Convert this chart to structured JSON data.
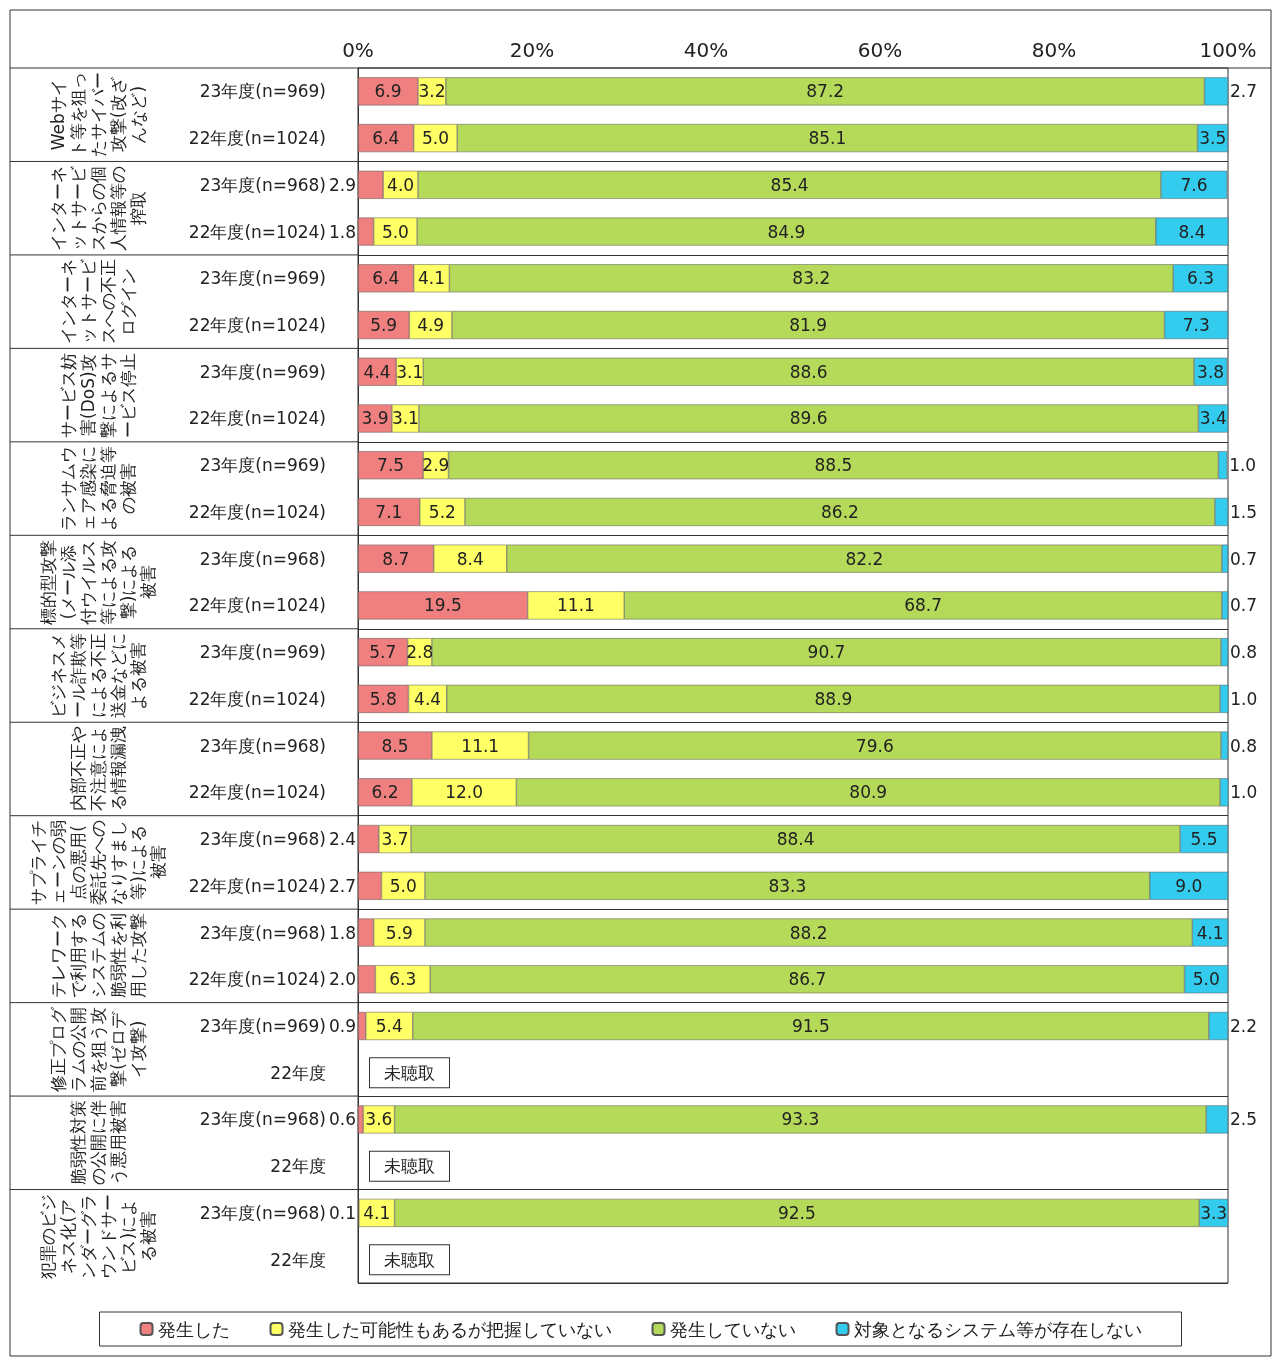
{
  "chart_data": {
    "type": "bar",
    "orientation": "horizontal",
    "stacked": true,
    "legend": "bottom",
    "categories": [
      "23年度(n=969)",
      "22年度(n=1024)",
      "23年度(n=968)",
      "22年度(n=1024)",
      "23年度(n=969)",
      "22年度(n=1024)",
      "23年度(n=969)",
      "22年度(n=1024)",
      "23年度(n=969)",
      "22年度(n=1024)",
      "23年度(n=968)",
      "22年度(n=1024)",
      "23年度(n=969)",
      "22年度(n=1024)",
      "23年度(n=968)",
      "22年度(n=1024)",
      "23年度(n=968)",
      "22年度(n=1024)",
      "23年度(n=968)",
      "22年度(n=1024)",
      "23年度(n=969)",
      "22年度",
      "23年度(n=968)",
      "22年度",
      "23年度(n=968)",
      "22年度"
    ],
    "xlim": [
      0,
      100
    ],
    "xticks": [
      {
        "value": 0,
        "label": "0%"
      },
      {
        "value": 20,
        "label": "20%"
      },
      {
        "value": 40,
        "label": "40%"
      },
      {
        "value": 60,
        "label": "60%"
      },
      {
        "value": 80,
        "label": "80%"
      },
      {
        "value": 100,
        "label": "100%"
      }
    ],
    "series": [
      {
        "name": "発生した",
        "color": "#f08080",
        "values": [
          6.9,
          6.4,
          2.9,
          1.8,
          6.4,
          5.9,
          4.4,
          3.9,
          7.5,
          7.1,
          8.7,
          19.5,
          5.7,
          5.8,
          8.5,
          6.2,
          2.4,
          2.7,
          1.8,
          2.0,
          0.9,
          null,
          0.6,
          null,
          0.1,
          null
        ],
        "value_labels": [
          "6.9",
          "6.4",
          "2.9",
          "1.8",
          "6.4",
          "5.9",
          "4.4",
          "3.9",
          "7.5",
          "7.1",
          "8.7",
          "19.5",
          "5.7",
          "5.8",
          "8.5",
          "6.2",
          "2.4",
          "2.7",
          "1.8",
          "2.0",
          "0.9",
          null,
          "0.6",
          null,
          "0.1",
          null
        ]
      },
      {
        "name": "発生した可能性もあるが把握していない",
        "color": "#ffff66",
        "values": [
          3.2,
          5.0,
          4.0,
          5.0,
          4.1,
          4.9,
          3.1,
          3.1,
          2.9,
          5.2,
          8.4,
          11.1,
          2.8,
          4.4,
          11.1,
          12.0,
          3.7,
          5.0,
          5.9,
          6.3,
          5.4,
          null,
          3.6,
          null,
          4.1,
          null
        ],
        "value_labels": [
          "3.2",
          "5.0",
          "4.0",
          "5.0",
          "4.1",
          "4.9",
          "3.1",
          "3.1",
          "2.9",
          "5.2",
          "8.4",
          "11.1",
          "2.8",
          "4.4",
          "11.1",
          "12.0",
          "3.7",
          "5.0",
          "5.9",
          "6.3",
          "5.4",
          null,
          "3.6",
          null,
          "4.1",
          null
        ]
      },
      {
        "name": "発生していない",
        "color": "#b5d959",
        "values": [
          87.2,
          85.1,
          85.4,
          84.9,
          83.2,
          81.9,
          88.6,
          89.6,
          88.5,
          86.2,
          82.2,
          68.7,
          90.7,
          88.9,
          79.6,
          80.9,
          88.4,
          83.3,
          88.2,
          86.7,
          91.5,
          null,
          93.3,
          null,
          92.5,
          null
        ],
        "value_labels": [
          "87.2",
          "85.1",
          "85.4",
          "84.9",
          "83.2",
          "81.9",
          "88.6",
          "89.6",
          "88.5",
          "86.2",
          "82.2",
          "68.7",
          "90.7",
          "88.9",
          "79.6",
          "80.9",
          "88.4",
          "83.3",
          "88.2",
          "86.7",
          "91.5",
          null,
          "93.3",
          null,
          "92.5",
          null
        ]
      },
      {
        "name": "対象となるシステム等が存在しない",
        "color": "#33ccee",
        "values": [
          2.7,
          3.5,
          7.6,
          8.4,
          6.3,
          7.3,
          3.8,
          3.4,
          1.0,
          1.5,
          0.7,
          0.7,
          0.8,
          1.0,
          0.8,
          1.0,
          5.5,
          9.0,
          4.1,
          5.0,
          2.2,
          null,
          2.5,
          null,
          3.3,
          null
        ],
        "value_labels": [
          "2.7",
          "3.5",
          "7.6",
          "8.4",
          "6.3",
          "7.3",
          "3.8",
          "3.4",
          "1.0",
          "1.5",
          "0.7",
          "0.7",
          "0.8",
          "1.0",
          "0.8",
          "1.0",
          "5.5",
          "9.0",
          "4.1",
          "5.0",
          "2.2",
          null,
          "2.5",
          null,
          "3.3",
          null
        ]
      }
    ],
    "annotations": [
      "Webサイト等を狙ったサイバー攻撃(改ざんなど)",
      "インターネットサービスからの個人情報等の搾取",
      "インターネットサービスへの不正ログイン",
      "サービス妨害(DoS)攻撃によるサービス停止",
      "ランサムウェア感染による脅迫等の被害",
      "標的型攻撃(メール添付ウイルス等による攻撃)による被害",
      "ビジネスメール詐欺等による不正送金などによる被害",
      "内部不正や不注意による情報漏洩",
      "サプライチェーンの弱点の悪用(委託先へのなりすまし等)による被害",
      "テレワークで利用するシステムの脆弱性を利用した攻撃",
      "修正プログラムの公開前を狙う攻撃(ゼロデイ攻撃)",
      "脆弱性対策の公開に伴う悪用被害",
      "犯罪のビジネス化(アンダーグラウンドサービス)による被害",
      "未聴取",
      "未聴取",
      "未聴取"
    ]
  }
}
